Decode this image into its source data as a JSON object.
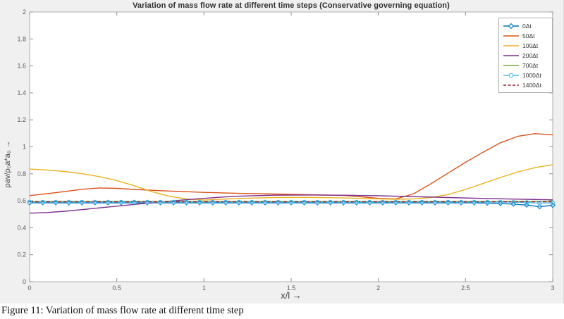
{
  "figure": {
    "caption": "Figure 11: Variation of mass flow rate at different time step",
    "background": "#f0f0f0",
    "plot_background": "#ffffff",
    "axis_box_color": "#aeaeae",
    "tick_color": "#8f8f8f",
    "tick_label_color": "#5b5b5b"
  },
  "chart_data": {
    "type": "line",
    "title": "Variation of mass flow rate at different time steps (Conservative governing equation)",
    "xlabel": "x/l →",
    "ylabel": "ρav/ρ₀a*a₀ →",
    "xlim": [
      0,
      3
    ],
    "ylim": [
      0,
      2
    ],
    "x_ticks": [
      0,
      0.5,
      1,
      1.5,
      2,
      2.5,
      3
    ],
    "x_tick_labels": [
      "0",
      "0.5",
      "1",
      "1.5",
      "2",
      "2.5",
      "3"
    ],
    "y_ticks": [
      0,
      0.2,
      0.4,
      0.6,
      0.8,
      1,
      1.2,
      1.4,
      1.6,
      1.8,
      2
    ],
    "y_tick_labels": [
      "0",
      "0.2",
      "0.4",
      "0.6",
      "0.8",
      "1",
      "1.2",
      "1.4",
      "1.6",
      "1.8",
      "2"
    ],
    "grid": false,
    "legend_position": "top-right",
    "series": [
      {
        "name": "0Δt",
        "color": "#0072BD",
        "style": "solid",
        "marker": "diamond",
        "x": [
          0,
          0.075,
          0.15,
          0.225,
          0.3,
          0.375,
          0.45,
          0.525,
          0.6,
          0.675,
          0.75,
          0.825,
          0.9,
          0.975,
          1.05,
          1.125,
          1.2,
          1.275,
          1.35,
          1.425,
          1.5,
          1.575,
          1.65,
          1.725,
          1.8,
          1.875,
          1.95,
          2.025,
          2.1,
          2.175,
          2.25,
          2.325,
          2.4,
          2.475,
          2.55,
          2.625,
          2.7,
          2.775,
          2.85,
          2.925,
          3
        ],
        "y": [
          0.585,
          0.585,
          0.585,
          0.585,
          0.585,
          0.585,
          0.585,
          0.585,
          0.585,
          0.585,
          0.585,
          0.585,
          0.585,
          0.585,
          0.585,
          0.585,
          0.585,
          0.585,
          0.585,
          0.585,
          0.585,
          0.585,
          0.585,
          0.585,
          0.585,
          0.585,
          0.585,
          0.585,
          0.585,
          0.585,
          0.585,
          0.585,
          0.585,
          0.585,
          0.585,
          0.583,
          0.58,
          0.575,
          0.568,
          0.556,
          0.566
        ]
      },
      {
        "name": "50Δt",
        "color": "#D95319",
        "style": "solid",
        "marker": "none",
        "x": [
          0,
          0.1,
          0.2,
          0.3,
          0.4,
          0.5,
          0.6,
          0.8,
          1.0,
          1.2,
          1.4,
          1.6,
          1.8,
          1.9,
          2.0,
          2.1,
          2.2,
          2.3,
          2.4,
          2.5,
          2.6,
          2.7,
          2.8,
          2.9,
          3.0
        ],
        "y": [
          0.638,
          0.652,
          0.668,
          0.685,
          0.695,
          0.692,
          0.684,
          0.672,
          0.662,
          0.655,
          0.65,
          0.645,
          0.639,
          0.63,
          0.618,
          0.614,
          0.65,
          0.725,
          0.805,
          0.885,
          0.96,
          1.03,
          1.078,
          1.098,
          1.088
        ]
      },
      {
        "name": "100Δt",
        "color": "#EDB120",
        "style": "solid",
        "marker": "none",
        "x": [
          0,
          0.1,
          0.2,
          0.3,
          0.4,
          0.5,
          0.6,
          0.7,
          0.8,
          0.9,
          1.0,
          1.2,
          1.4,
          1.6,
          1.8,
          2.0,
          2.1,
          2.2,
          2.3,
          2.4,
          2.5,
          2.6,
          2.7,
          2.8,
          2.9,
          3.0
        ],
        "y": [
          0.835,
          0.828,
          0.817,
          0.801,
          0.779,
          0.75,
          0.712,
          0.668,
          0.634,
          0.613,
          0.605,
          0.617,
          0.624,
          0.625,
          0.621,
          0.614,
          0.611,
          0.614,
          0.624,
          0.646,
          0.684,
          0.728,
          0.773,
          0.814,
          0.846,
          0.868
        ]
      },
      {
        "name": "200Δt",
        "color": "#7E2F8E",
        "style": "solid",
        "marker": "none",
        "x": [
          0,
          0.1,
          0.2,
          0.3,
          0.4,
          0.5,
          0.6,
          0.7,
          0.8,
          0.9,
          1.0,
          1.1,
          1.2,
          1.4,
          1.6,
          1.8,
          2.0,
          2.2,
          2.4,
          2.6,
          2.8,
          3.0
        ],
        "y": [
          0.508,
          0.513,
          0.522,
          0.534,
          0.547,
          0.56,
          0.573,
          0.585,
          0.597,
          0.608,
          0.618,
          0.627,
          0.634,
          0.641,
          0.643,
          0.641,
          0.637,
          0.631,
          0.624,
          0.617,
          0.612,
          0.607
        ]
      },
      {
        "name": "700Δt",
        "color": "#77AC30",
        "style": "solid",
        "marker": "none",
        "x": [
          0,
          3
        ],
        "y": [
          0.595,
          0.595
        ]
      },
      {
        "name": "1000Δt",
        "color": "#4DBEEE",
        "style": "solid",
        "marker": "circle",
        "x": [
          0,
          0.075,
          0.15,
          0.225,
          0.3,
          0.375,
          0.45,
          0.525,
          0.6,
          0.675,
          0.75,
          0.825,
          0.9,
          0.975,
          1.05,
          1.125,
          1.2,
          1.275,
          1.35,
          1.425,
          1.5,
          1.575,
          1.65,
          1.725,
          1.8,
          1.875,
          1.95,
          2.025,
          2.1,
          2.175,
          2.25,
          2.325,
          2.4,
          2.475,
          2.55,
          2.625,
          2.7,
          2.775,
          2.85,
          2.925,
          3
        ],
        "y": [
          0.59,
          0.59,
          0.59,
          0.59,
          0.59,
          0.59,
          0.59,
          0.59,
          0.59,
          0.59,
          0.59,
          0.59,
          0.59,
          0.59,
          0.59,
          0.59,
          0.59,
          0.59,
          0.59,
          0.59,
          0.59,
          0.59,
          0.59,
          0.59,
          0.59,
          0.59,
          0.59,
          0.59,
          0.59,
          0.59,
          0.59,
          0.59,
          0.59,
          0.59,
          0.59,
          0.59,
          0.59,
          0.59,
          0.587,
          0.583,
          0.585
        ]
      },
      {
        "name": "1400Δt",
        "color": "#A2142F",
        "style": "dashed",
        "marker": "none",
        "x": [
          0,
          3
        ],
        "y": [
          0.592,
          0.592
        ]
      }
    ]
  }
}
